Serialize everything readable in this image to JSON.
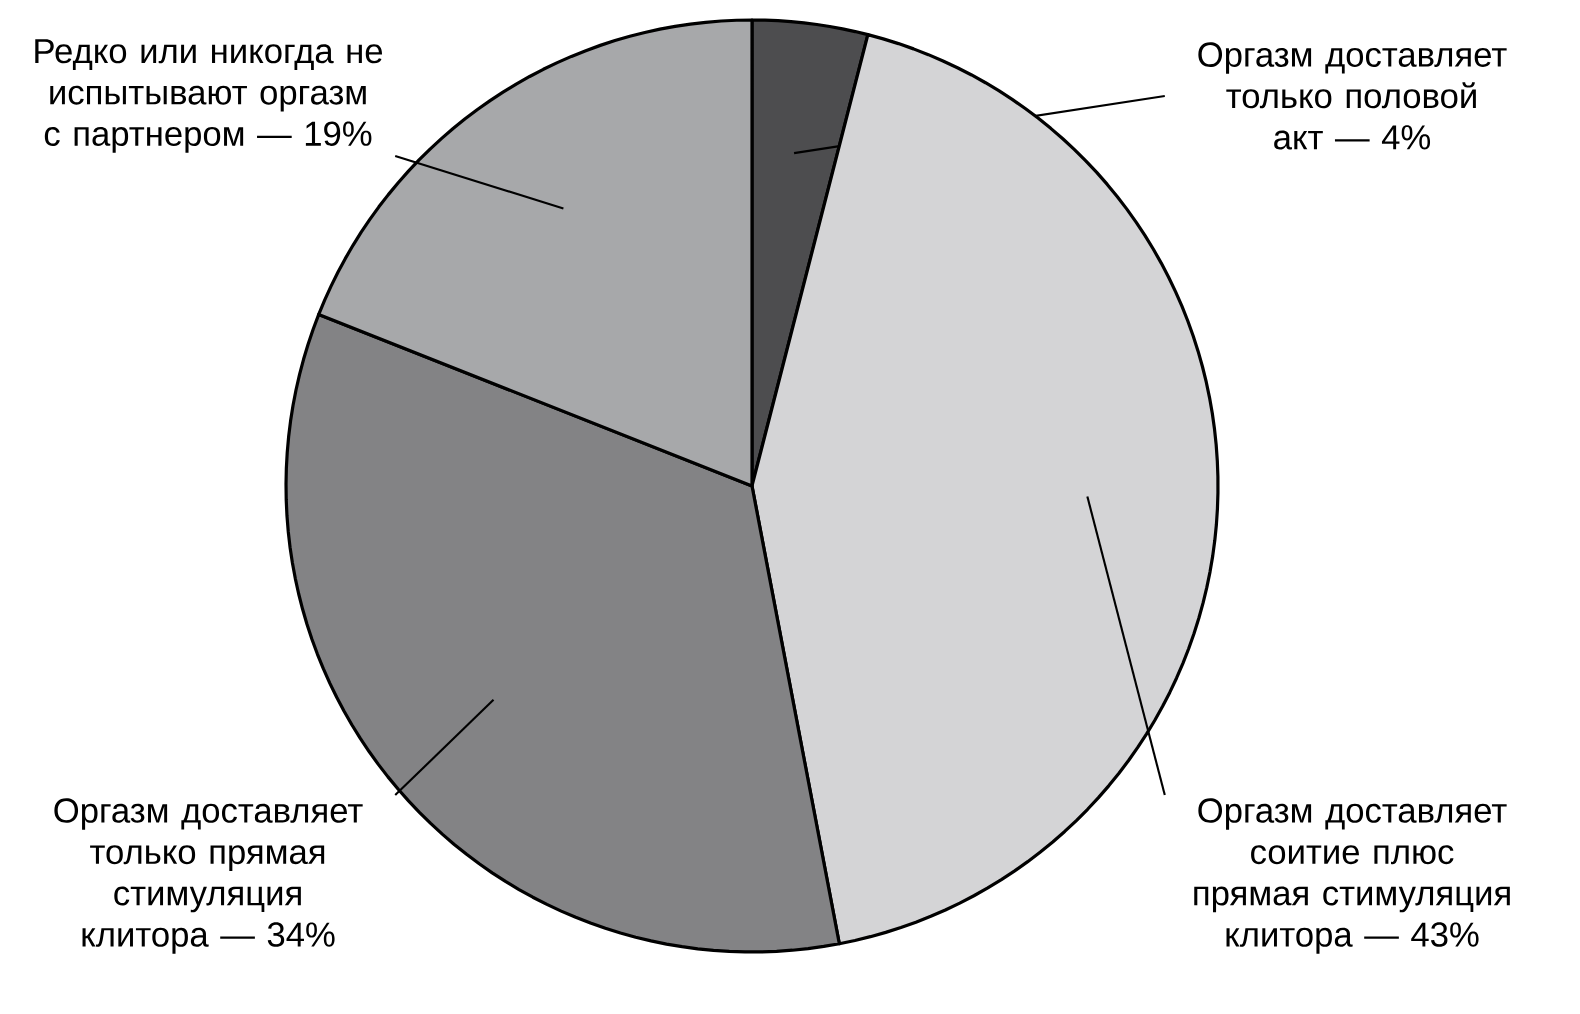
{
  "chart_data": {
    "type": "pie",
    "categories": [
      "Оргазм доставляет только половой акт — 4%",
      "Оргазм доставляет соитие плюс прямая стимуляция клитора — 43%",
      "Оргазм доставляет только прямая стимуляция клитора — 34%",
      "Редко или никогда не испытывают оргазм с партнером — 19%"
    ],
    "values": [
      4,
      43,
      34,
      19
    ],
    "colors": [
      "#4d4d4f",
      "#d4d4d6",
      "#838385",
      "#a7a8aa"
    ]
  }
}
